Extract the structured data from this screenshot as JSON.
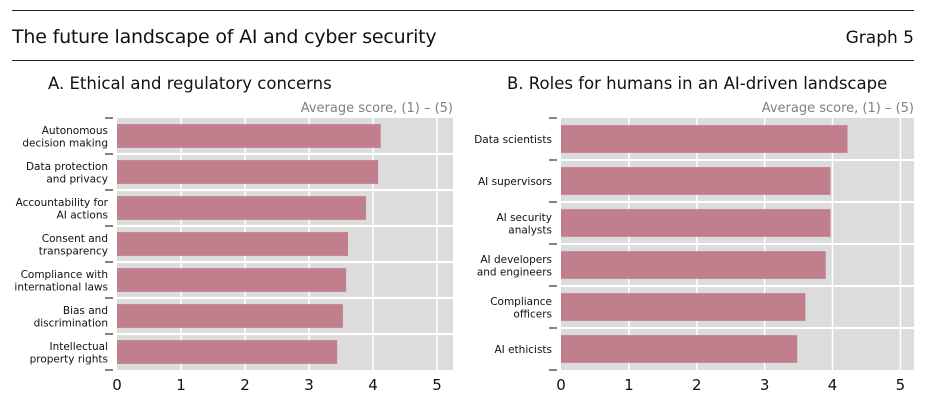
{
  "header": {
    "title": "The future landscape of AI and cyber security",
    "graph_number": "Graph 5"
  },
  "colors": {
    "bar": "#c17f8e",
    "plot_background": "#dcdcdc",
    "gridline": "#ffffff",
    "unit_label": "#808080"
  },
  "chart_data": [
    {
      "type": "bar",
      "orientation": "horizontal",
      "title": "A. Ethical and regulatory concerns",
      "unit_label": "Average score, (1) – (5)",
      "xlabel": "",
      "ylabel": "",
      "xlim": [
        0,
        5.25
      ],
      "xticks": [
        "0",
        "1",
        "2",
        "3",
        "4",
        "5"
      ],
      "grid": true,
      "legend": "none",
      "categories": [
        [
          "Autonomous",
          "decision making"
        ],
        [
          "Data protection",
          "and privacy"
        ],
        [
          "Accountability for",
          "AI actions"
        ],
        [
          "Consent and",
          "transparency"
        ],
        [
          "Compliance with",
          "international laws"
        ],
        [
          "Bias and",
          "discrimination"
        ],
        [
          "Intellectual",
          "property rights"
        ]
      ],
      "values": [
        4.12,
        4.08,
        3.89,
        3.61,
        3.58,
        3.53,
        3.44
      ]
    },
    {
      "type": "bar",
      "orientation": "horizontal",
      "title": "B. Roles for humans in an AI-driven landscape",
      "unit_label": "Average score, (1) – (5)",
      "xlabel": "",
      "ylabel": "",
      "xlim": [
        0,
        5.2
      ],
      "xticks": [
        "0",
        "1",
        "2",
        "3",
        "4",
        "5"
      ],
      "grid": true,
      "legend": "none",
      "categories": [
        [
          "Data scientists"
        ],
        [
          "AI supervisors"
        ],
        [
          "AI security",
          "analysts"
        ],
        [
          "AI developers",
          "and engineers"
        ],
        [
          "Compliance",
          "officers"
        ],
        [
          "AI ethicists"
        ]
      ],
      "values": [
        4.22,
        3.97,
        3.97,
        3.9,
        3.6,
        3.48
      ]
    }
  ]
}
